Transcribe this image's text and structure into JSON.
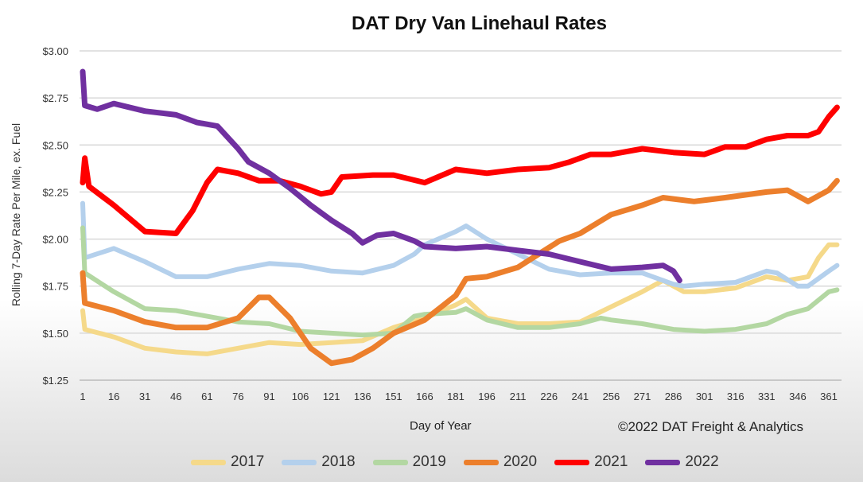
{
  "chart_data": {
    "type": "line",
    "title": "DAT Dry Van Linehaul Rates",
    "xlabel": "Day of Year",
    "ylabel": "Rolling 7-Day Rate Per Mile, ex. Fuel",
    "credit": "©2022 DAT Freight & Analytics",
    "xlim": [
      1,
      365
    ],
    "ylim": [
      1.25,
      3.0
    ],
    "xticks": [
      1,
      16,
      31,
      46,
      61,
      76,
      91,
      106,
      121,
      136,
      151,
      166,
      181,
      196,
      211,
      226,
      241,
      256,
      271,
      286,
      301,
      316,
      331,
      346,
      361
    ],
    "yticks": [
      {
        "value": 3.0,
        "label": "$3.00"
      },
      {
        "value": 2.75,
        "label": "$2.75"
      },
      {
        "value": 2.5,
        "label": "$2.50"
      },
      {
        "value": 2.25,
        "label": "$2.25"
      },
      {
        "value": 2.0,
        "label": "$2.00"
      },
      {
        "value": 1.75,
        "label": "$1.75"
      },
      {
        "value": 1.5,
        "label": "$1.50"
      },
      {
        "value": 1.25,
        "label": "$1.25"
      }
    ],
    "grid": true,
    "legend_position": "bottom",
    "series": [
      {
        "name": "2017",
        "color": "#f5d98a",
        "points": [
          [
            1,
            1.62
          ],
          [
            2,
            1.52
          ],
          [
            16,
            1.48
          ],
          [
            31,
            1.42
          ],
          [
            46,
            1.4
          ],
          [
            61,
            1.39
          ],
          [
            76,
            1.42
          ],
          [
            91,
            1.45
          ],
          [
            106,
            1.44
          ],
          [
            121,
            1.45
          ],
          [
            136,
            1.46
          ],
          [
            151,
            1.53
          ],
          [
            166,
            1.58
          ],
          [
            181,
            1.65
          ],
          [
            186,
            1.68
          ],
          [
            196,
            1.58
          ],
          [
            211,
            1.55
          ],
          [
            226,
            1.55
          ],
          [
            241,
            1.56
          ],
          [
            256,
            1.64
          ],
          [
            271,
            1.72
          ],
          [
            281,
            1.78
          ],
          [
            291,
            1.72
          ],
          [
            301,
            1.72
          ],
          [
            316,
            1.74
          ],
          [
            331,
            1.8
          ],
          [
            341,
            1.78
          ],
          [
            351,
            1.8
          ],
          [
            356,
            1.9
          ],
          [
            361,
            1.97
          ],
          [
            365,
            1.97
          ]
        ]
      },
      {
        "name": "2018",
        "color": "#b4d0ec",
        "points": [
          [
            1,
            2.19
          ],
          [
            2,
            1.9
          ],
          [
            16,
            1.95
          ],
          [
            31,
            1.88
          ],
          [
            46,
            1.8
          ],
          [
            61,
            1.8
          ],
          [
            76,
            1.84
          ],
          [
            91,
            1.87
          ],
          [
            106,
            1.86
          ],
          [
            121,
            1.83
          ],
          [
            136,
            1.82
          ],
          [
            151,
            1.86
          ],
          [
            161,
            1.92
          ],
          [
            166,
            1.97
          ],
          [
            181,
            2.04
          ],
          [
            186,
            2.07
          ],
          [
            196,
            2.0
          ],
          [
            211,
            1.92
          ],
          [
            226,
            1.84
          ],
          [
            241,
            1.81
          ],
          [
            256,
            1.82
          ],
          [
            271,
            1.82
          ],
          [
            286,
            1.76
          ],
          [
            291,
            1.75
          ],
          [
            301,
            1.76
          ],
          [
            316,
            1.77
          ],
          [
            331,
            1.83
          ],
          [
            336,
            1.82
          ],
          [
            346,
            1.75
          ],
          [
            351,
            1.75
          ],
          [
            361,
            1.83
          ],
          [
            365,
            1.86
          ]
        ]
      },
      {
        "name": "2019",
        "color": "#b3d7a2",
        "points": [
          [
            1,
            2.06
          ],
          [
            2,
            1.82
          ],
          [
            16,
            1.72
          ],
          [
            31,
            1.63
          ],
          [
            46,
            1.62
          ],
          [
            61,
            1.59
          ],
          [
            76,
            1.56
          ],
          [
            91,
            1.55
          ],
          [
            106,
            1.51
          ],
          [
            121,
            1.5
          ],
          [
            136,
            1.49
          ],
          [
            151,
            1.5
          ],
          [
            161,
            1.59
          ],
          [
            166,
            1.6
          ],
          [
            181,
            1.61
          ],
          [
            186,
            1.63
          ],
          [
            196,
            1.57
          ],
          [
            211,
            1.53
          ],
          [
            226,
            1.53
          ],
          [
            241,
            1.55
          ],
          [
            251,
            1.58
          ],
          [
            256,
            1.57
          ],
          [
            271,
            1.55
          ],
          [
            286,
            1.52
          ],
          [
            301,
            1.51
          ],
          [
            316,
            1.52
          ],
          [
            331,
            1.55
          ],
          [
            341,
            1.6
          ],
          [
            351,
            1.63
          ],
          [
            361,
            1.72
          ],
          [
            365,
            1.73
          ]
        ]
      },
      {
        "name": "2020",
        "color": "#ec7f2c",
        "points": [
          [
            1,
            1.82
          ],
          [
            2,
            1.66
          ],
          [
            16,
            1.62
          ],
          [
            31,
            1.56
          ],
          [
            46,
            1.53
          ],
          [
            61,
            1.53
          ],
          [
            76,
            1.58
          ],
          [
            86,
            1.69
          ],
          [
            91,
            1.69
          ],
          [
            101,
            1.58
          ],
          [
            111,
            1.42
          ],
          [
            121,
            1.34
          ],
          [
            131,
            1.36
          ],
          [
            141,
            1.42
          ],
          [
            151,
            1.5
          ],
          [
            166,
            1.57
          ],
          [
            181,
            1.7
          ],
          [
            186,
            1.79
          ],
          [
            196,
            1.8
          ],
          [
            211,
            1.85
          ],
          [
            221,
            1.92
          ],
          [
            231,
            1.99
          ],
          [
            241,
            2.03
          ],
          [
            256,
            2.13
          ],
          [
            271,
            2.18
          ],
          [
            281,
            2.22
          ],
          [
            296,
            2.2
          ],
          [
            311,
            2.22
          ],
          [
            331,
            2.25
          ],
          [
            341,
            2.26
          ],
          [
            351,
            2.2
          ],
          [
            361,
            2.26
          ],
          [
            365,
            2.31
          ]
        ]
      },
      {
        "name": "2021",
        "color": "#ff0000",
        "points": [
          [
            1,
            2.3
          ],
          [
            2,
            2.43
          ],
          [
            4,
            2.28
          ],
          [
            16,
            2.18
          ],
          [
            31,
            2.04
          ],
          [
            46,
            2.03
          ],
          [
            54,
            2.15
          ],
          [
            61,
            2.3
          ],
          [
            66,
            2.37
          ],
          [
            76,
            2.35
          ],
          [
            86,
            2.31
          ],
          [
            96,
            2.31
          ],
          [
            106,
            2.28
          ],
          [
            116,
            2.24
          ],
          [
            121,
            2.25
          ],
          [
            126,
            2.33
          ],
          [
            141,
            2.34
          ],
          [
            151,
            2.34
          ],
          [
            166,
            2.3
          ],
          [
            181,
            2.37
          ],
          [
            196,
            2.35
          ],
          [
            211,
            2.37
          ],
          [
            226,
            2.38
          ],
          [
            236,
            2.41
          ],
          [
            246,
            2.45
          ],
          [
            256,
            2.45
          ],
          [
            271,
            2.48
          ],
          [
            286,
            2.46
          ],
          [
            301,
            2.45
          ],
          [
            311,
            2.49
          ],
          [
            321,
            2.49
          ],
          [
            331,
            2.53
          ],
          [
            341,
            2.55
          ],
          [
            351,
            2.55
          ],
          [
            356,
            2.57
          ],
          [
            361,
            2.65
          ],
          [
            365,
            2.7
          ]
        ]
      },
      {
        "name": "2022",
        "color": "#7030a0",
        "points": [
          [
            1,
            2.89
          ],
          [
            2,
            2.71
          ],
          [
            8,
            2.69
          ],
          [
            16,
            2.72
          ],
          [
            31,
            2.68
          ],
          [
            46,
            2.66
          ],
          [
            56,
            2.62
          ],
          [
            66,
            2.6
          ],
          [
            76,
            2.48
          ],
          [
            81,
            2.41
          ],
          [
            91,
            2.35
          ],
          [
            101,
            2.27
          ],
          [
            111,
            2.18
          ],
          [
            121,
            2.1
          ],
          [
            131,
            2.03
          ],
          [
            136,
            1.98
          ],
          [
            143,
            2.02
          ],
          [
            151,
            2.03
          ],
          [
            161,
            1.99
          ],
          [
            166,
            1.96
          ],
          [
            181,
            1.95
          ],
          [
            196,
            1.96
          ],
          [
            211,
            1.94
          ],
          [
            226,
            1.92
          ],
          [
            241,
            1.88
          ],
          [
            256,
            1.84
          ],
          [
            271,
            1.85
          ],
          [
            281,
            1.86
          ],
          [
            286,
            1.83
          ],
          [
            289,
            1.78
          ]
        ]
      }
    ]
  }
}
